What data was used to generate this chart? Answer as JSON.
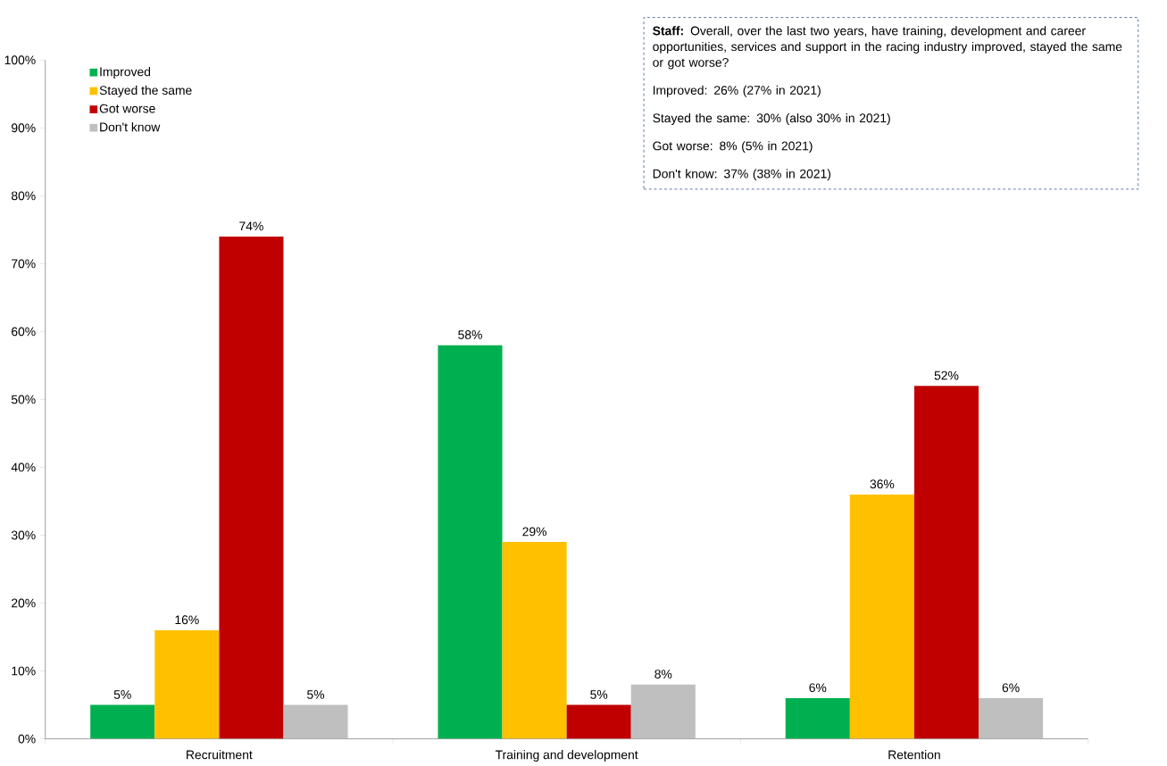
{
  "chart_data": {
    "type": "bar",
    "categories": [
      "Recruitment",
      "Training and development",
      "Retention"
    ],
    "series": [
      {
        "name": "Improved",
        "color": "#00b050",
        "values": [
          5,
          58,
          6
        ],
        "value_labels": [
          "5%",
          "58%",
          "6%"
        ]
      },
      {
        "name": "Stayed the same",
        "color": "#ffc000",
        "values": [
          16,
          29,
          36
        ],
        "value_labels": [
          "16%",
          "29%",
          "36%"
        ]
      },
      {
        "name": "Got worse",
        "color": "#c00000",
        "values": [
          74,
          5,
          52
        ],
        "value_labels": [
          "74%",
          "5%",
          "52%"
        ]
      },
      {
        "name": "Don't know",
        "color": "#bfbfbf",
        "values": [
          5,
          8,
          6
        ],
        "value_labels": [
          "5%",
          "8%",
          "6%"
        ]
      }
    ],
    "ylim": [
      0,
      100
    ],
    "yticks": [
      {
        "value": 0,
        "label": "0%"
      },
      {
        "value": 10,
        "label": "10%"
      },
      {
        "value": 20,
        "label": "20%"
      },
      {
        "value": 30,
        "label": "30%"
      },
      {
        "value": 40,
        "label": "40%"
      },
      {
        "value": 50,
        "label": "50%"
      },
      {
        "value": 60,
        "label": "60%"
      },
      {
        "value": 70,
        "label": "70%"
      },
      {
        "value": 80,
        "label": "80%"
      },
      {
        "value": 90,
        "label": "90%"
      },
      {
        "value": 100,
        "label": "100%"
      }
    ],
    "legend": "top left",
    "grid": false,
    "annotations": [
      "**Staff:** Overall, over the last two years, have training, development and career opportunities, services and support in the racing industry improved, stayed the same or got worse?",
      "Improved: 26% (27% in 2021)",
      "Stayed the same: 30% (also 30% in 2021)",
      "Got worse: 8% (5% in 2021)",
      "Don't know: 37% (38% in 2021)"
    ]
  }
}
